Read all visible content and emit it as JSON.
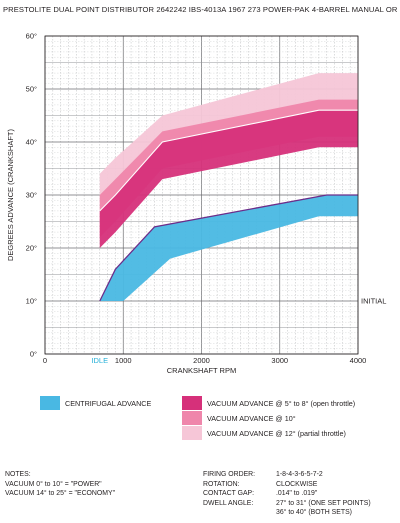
{
  "title": "PRESTOLITE DUAL POINT DISTRIBUTOR 2642242 IBS-4013A 1967 273 POWER-PAK 4-BARREL MANUAL OR AUTO",
  "chart_data": {
    "type": "area",
    "xlabel": "CRANKSHAFT RPM",
    "ylabel": "DEGREES ADVANCE (CRANKSHAFT)",
    "xlim": [
      0,
      4000
    ],
    "ylim": [
      0,
      60
    ],
    "x_ticks": [
      {
        "value": 0,
        "label": "0"
      },
      {
        "value": 1000,
        "label": "1000"
      },
      {
        "value": 2000,
        "label": "2000"
      },
      {
        "value": 3000,
        "label": "3000"
      },
      {
        "value": 4000,
        "label": "4000"
      }
    ],
    "y_ticks": [
      {
        "value": 0,
        "label": "0°"
      },
      {
        "value": 10,
        "label": "10°"
      },
      {
        "value": 20,
        "label": "20°"
      },
      {
        "value": 30,
        "label": "30°"
      },
      {
        "value": 40,
        "label": "40°"
      },
      {
        "value": 50,
        "label": "50°"
      },
      {
        "value": 60,
        "label": "60°"
      }
    ],
    "idle": {
      "x": 700,
      "label": "IDLE",
      "color": "#26b0d8"
    },
    "initial": {
      "y": 10,
      "label": "INITIAL"
    },
    "grid": true,
    "bands": [
      {
        "name": "VACUUM ADVANCE @ 12° (partial throttle)",
        "color": "#f6c6d7",
        "upper": [
          [
            700,
            34
          ],
          [
            900,
            37
          ],
          [
            1500,
            45
          ],
          [
            3500,
            53
          ],
          [
            4000,
            53
          ]
        ],
        "lower": [
          [
            700,
            25
          ],
          [
            900,
            28
          ],
          [
            1500,
            39
          ],
          [
            3500,
            45
          ],
          [
            4000,
            45
          ]
        ]
      },
      {
        "name": "VACUUM ADVANCE @ 10°",
        "color": "#ef86ab",
        "upper": [
          [
            700,
            30
          ],
          [
            900,
            33
          ],
          [
            1500,
            42
          ],
          [
            3500,
            48
          ],
          [
            4000,
            48
          ]
        ],
        "lower": [
          [
            700,
            22
          ],
          [
            900,
            25
          ],
          [
            1500,
            35
          ],
          [
            3500,
            41
          ],
          [
            4000,
            41
          ]
        ]
      },
      {
        "name": "VACUUM ADVANCE @ 5° to 8° (open throttle)",
        "color": "#d6307a",
        "upper": [
          [
            700,
            27
          ],
          [
            900,
            30
          ],
          [
            1500,
            40
          ],
          [
            3500,
            46
          ],
          [
            4000,
            46
          ]
        ],
        "lower": [
          [
            700,
            20
          ],
          [
            900,
            23
          ],
          [
            1500,
            33
          ],
          [
            3500,
            39
          ],
          [
            4000,
            39
          ]
        ]
      },
      {
        "name": "CENTRIFUGAL ADVANCE",
        "color": "#49b8e3",
        "upper": [
          [
            700,
            10
          ],
          [
            900,
            16
          ],
          [
            1400,
            24
          ],
          [
            3600,
            30
          ],
          [
            4000,
            30
          ]
        ],
        "lower": [
          [
            700,
            10
          ],
          [
            1000,
            10
          ],
          [
            1600,
            18
          ],
          [
            3500,
            26
          ],
          [
            4000,
            26
          ]
        ]
      }
    ],
    "centrifugal_curve": [
      [
        700,
        10
      ],
      [
        900,
        16
      ],
      [
        1400,
        24
      ],
      [
        3600,
        30
      ],
      [
        4000,
        30
      ]
    ],
    "vacuum_curve": [
      [
        700,
        27
      ],
      [
        900,
        30
      ],
      [
        1500,
        40
      ],
      [
        3500,
        46
      ],
      [
        4000,
        46
      ]
    ],
    "line_color": "#6b2d8a"
  },
  "legend": {
    "centrifugal": {
      "label": "CENTRIFUGAL ADVANCE",
      "color": "#49b8e3"
    },
    "vac_open": {
      "label": "VACUUM ADVANCE @ 5° to 8° (open throttle)",
      "color": "#d6307a"
    },
    "vac_10": {
      "label": "VACUUM ADVANCE @ 10°",
      "color": "#ef86ab"
    },
    "vac_partial": {
      "label": "VACUUM ADVANCE @ 12° (partial throttle)",
      "color": "#f6c6d7"
    }
  },
  "notes": {
    "heading": "NOTES:",
    "line1": "VACUUM 0° to 10° = \"POWER\"",
    "line2": "VACUUM 14° to 25° = \"ECONOMY\""
  },
  "specs": {
    "firing_label": "FIRING ORDER:",
    "firing_value": "1-8-4-3-6-5-7-2",
    "rotation_label": "ROTATION:",
    "rotation_value": "CLOCKWISE",
    "gap_label": "CONTACT GAP:",
    "gap_value": ".014\" to .019\"",
    "dwell_label": "DWELL ANGLE:",
    "dwell_value1": "27° to 31° (ONE SET POINTS)",
    "dwell_value2": "36° to 40° (BOTH SETS)"
  }
}
